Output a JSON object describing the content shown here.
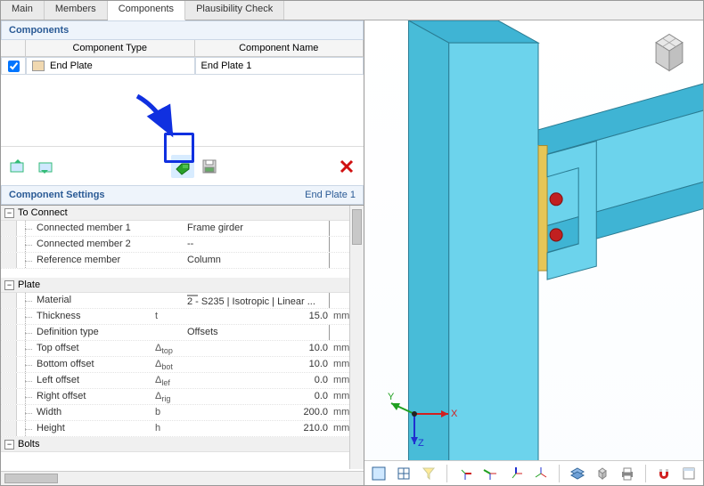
{
  "tabs": {
    "main": "Main",
    "members": "Members",
    "components": "Components",
    "plaus": "Plausibility Check",
    "active": "components"
  },
  "components": {
    "title": "Components",
    "headers": {
      "type": "Component Type",
      "name": "Component Name"
    },
    "rows": [
      {
        "checked": true,
        "swatch": "#f0d8b0",
        "type": "End Plate",
        "name": "End Plate 1"
      }
    ]
  },
  "toolbar": {
    "add_left": "add-left",
    "add_right": "add-right",
    "pick": "pick-element",
    "save": "save-config",
    "delete": "delete"
  },
  "settings": {
    "title": "Component Settings",
    "rhs": "End Plate 1",
    "groups": [
      {
        "name": "To Connect",
        "open": true,
        "rows": [
          {
            "name": "Connected member 1",
            "val": "Frame girder",
            "align": "left"
          },
          {
            "name": "Connected member 2",
            "val": "--",
            "align": "left"
          },
          {
            "name": "Reference member",
            "val": "Column",
            "align": "left"
          }
        ]
      },
      {
        "name": "Plate",
        "open": true,
        "rows": [
          {
            "name": "Material",
            "val": "2 - S235 | Isotropic | Linear ...",
            "align": "left",
            "swatch": "#f0c020"
          },
          {
            "name": "Thickness",
            "sym": "t",
            "val": "15.0",
            "unit": "mm"
          },
          {
            "name": "Definition type",
            "val": "Offsets",
            "align": "left"
          },
          {
            "name": "Top offset",
            "sym": "Δ<sub>top</sub>",
            "val": "10.0",
            "unit": "mm"
          },
          {
            "name": "Bottom offset",
            "sym": "Δ<sub>bot</sub>",
            "val": "10.0",
            "unit": "mm"
          },
          {
            "name": "Left offset",
            "sym": "Δ<sub>lef</sub>",
            "val": "0.0",
            "unit": "mm"
          },
          {
            "name": "Right offset",
            "sym": "Δ<sub>rig</sub>",
            "val": "0.0",
            "unit": "mm"
          },
          {
            "name": "Width",
            "sym": "b",
            "val": "200.0",
            "unit": "mm"
          },
          {
            "name": "Height",
            "sym": "h",
            "val": "210.0",
            "unit": "mm"
          }
        ]
      },
      {
        "name": "Bolts",
        "open": true,
        "rows": []
      }
    ]
  },
  "view": {
    "colors": {
      "beam_face": "#6cd3ec",
      "beam_side": "#3fb4d4",
      "plate": "#e6c657",
      "bolt": "#c12020"
    },
    "axes": {
      "x": "X",
      "y": "Y",
      "z": "Z",
      "x_color": "#d02020",
      "y_color": "#20a020",
      "z_color": "#2030d0"
    }
  }
}
